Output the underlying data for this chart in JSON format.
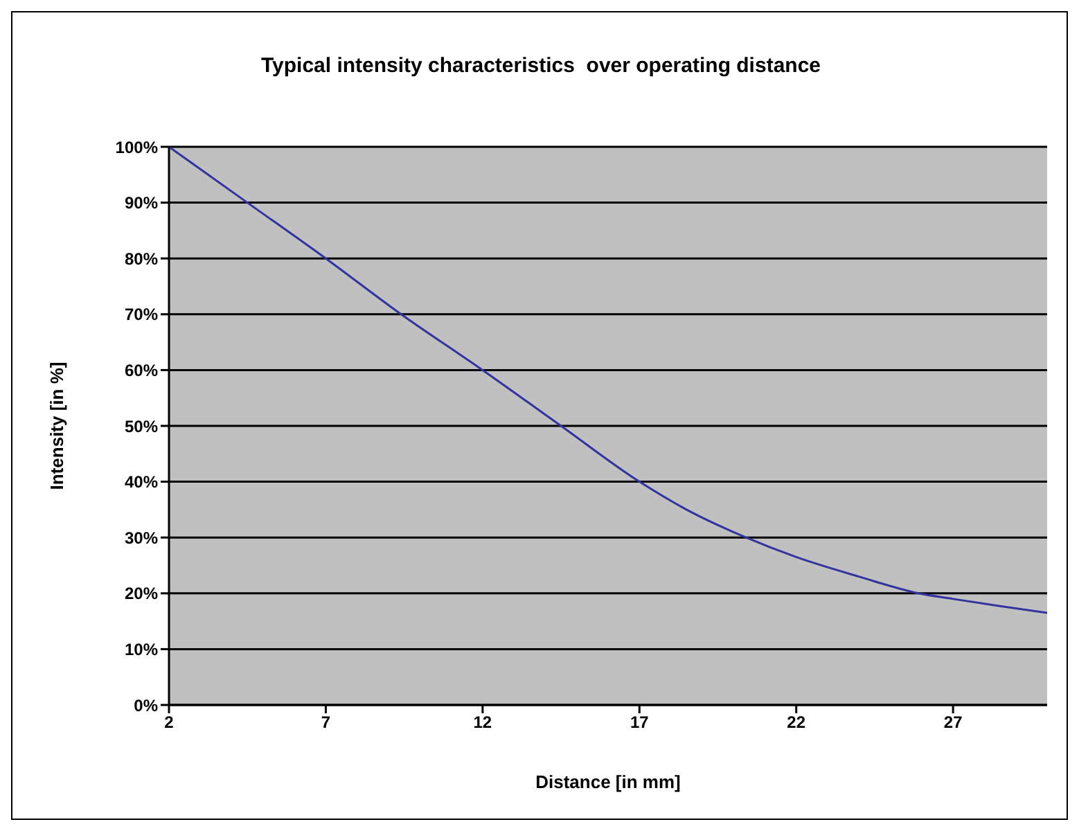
{
  "chart_data": {
    "type": "line",
    "title": "Typical intensity characteristics  over operating distance",
    "xlabel": "Distance [in mm]",
    "ylabel": "Intensity [in %]",
    "x": [
      2,
      4.5,
      7,
      9.4,
      12,
      14.5,
      17,
      18.5,
      20.4,
      22,
      24,
      25.9,
      27,
      28.5,
      30
    ],
    "series": [
      {
        "color": "#3333a0",
        "values": [
          100,
          90,
          80,
          70,
          60,
          50,
          40,
          35,
          30,
          26.5,
          23,
          20,
          19,
          17.7,
          16.5
        ]
      }
    ],
    "xlim": [
      2,
      30
    ],
    "xticks": [
      2,
      7,
      12,
      17,
      22,
      27
    ],
    "ylim": [
      0,
      100
    ],
    "yticks": [
      {
        "value": 0,
        "label": "0%"
      },
      {
        "value": 10,
        "label": "10%"
      },
      {
        "value": 20,
        "label": "20%"
      },
      {
        "value": 30,
        "label": "30%"
      },
      {
        "value": 40,
        "label": "40%"
      },
      {
        "value": 50,
        "label": "50%"
      },
      {
        "value": 60,
        "label": "60%"
      },
      {
        "value": 70,
        "label": "70%"
      },
      {
        "value": 80,
        "label": "80%"
      },
      {
        "value": 90,
        "label": "90%"
      },
      {
        "value": 100,
        "label": "100%"
      }
    ],
    "grid": "y",
    "marker": "none",
    "line_style": "solid"
  }
}
